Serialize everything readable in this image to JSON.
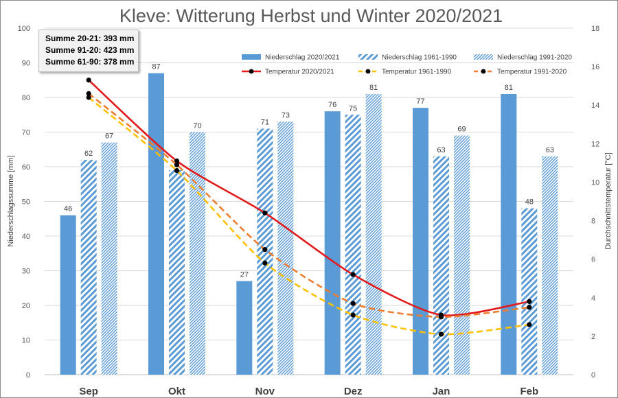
{
  "chart_data": {
    "type": "bar",
    "title": "Kleve: Witterung Herbst und Winter 2020/2021",
    "categories": [
      "Sep",
      "Okt",
      "Nov",
      "Dez",
      "Jan",
      "Feb"
    ],
    "ylabel_left": "Niederschlagssumme [mm]",
    "ylabel_right": "Durchschnittstemperatur [°C]",
    "ylim_left": [
      0,
      100
    ],
    "yticks_left": [
      "0",
      "10",
      "20",
      "30",
      "40",
      "50",
      "60",
      "70",
      "80",
      "90",
      "100"
    ],
    "ylim_right": [
      0,
      18
    ],
    "yticks_right": [
      "0",
      "2",
      "4",
      "6",
      "8",
      "10",
      "12",
      "14",
      "16",
      "18"
    ],
    "grid": true,
    "legend_position": "top-right",
    "bar_series": [
      {
        "name": "Niederschlag 2020/2021",
        "values": [
          46,
          87,
          27,
          76,
          77,
          81
        ],
        "labels": [
          "46",
          "87",
          "27",
          "76",
          "77",
          "81"
        ],
        "color": "#5b9bd5",
        "pattern": "solid"
      },
      {
        "name": "Niederschlag 1961-1990",
        "values": [
          62,
          59,
          71,
          75,
          63,
          48
        ],
        "labels": [
          "62",
          "",
          "71",
          "75",
          "63",
          "48"
        ],
        "color": "#5b9bd5",
        "pattern": "wide-hatch"
      },
      {
        "name": "Niederschlag 1991-2020",
        "values": [
          67,
          70,
          73,
          81,
          69,
          63
        ],
        "labels": [
          "67",
          "70",
          "73",
          "81",
          "69",
          "63"
        ],
        "color": "#5b9bd5",
        "pattern": "fine-hatch"
      }
    ],
    "line_series": [
      {
        "name": "Temperatur 2020/2021",
        "values": [
          15.3,
          11.1,
          8.4,
          5.2,
          3.1,
          3.8
        ],
        "color": "#e31a1c",
        "dash": "solid"
      },
      {
        "name": "Temperatur 1961-1990",
        "values": [
          14.4,
          10.6,
          5.8,
          3.1,
          2.1,
          2.6
        ],
        "color": "#ffc000",
        "dash": "dashed"
      },
      {
        "name": "Temperatur 1991-2020",
        "values": [
          14.6,
          10.9,
          6.5,
          3.7,
          3.0,
          3.5
        ],
        "color": "#ed7d31",
        "dash": "dashed"
      }
    ],
    "annotations": [
      "Summe 20-21: 393 mm",
      "Summe 91-20: 423 mm",
      "Summe 61-90: 378 mm"
    ]
  }
}
